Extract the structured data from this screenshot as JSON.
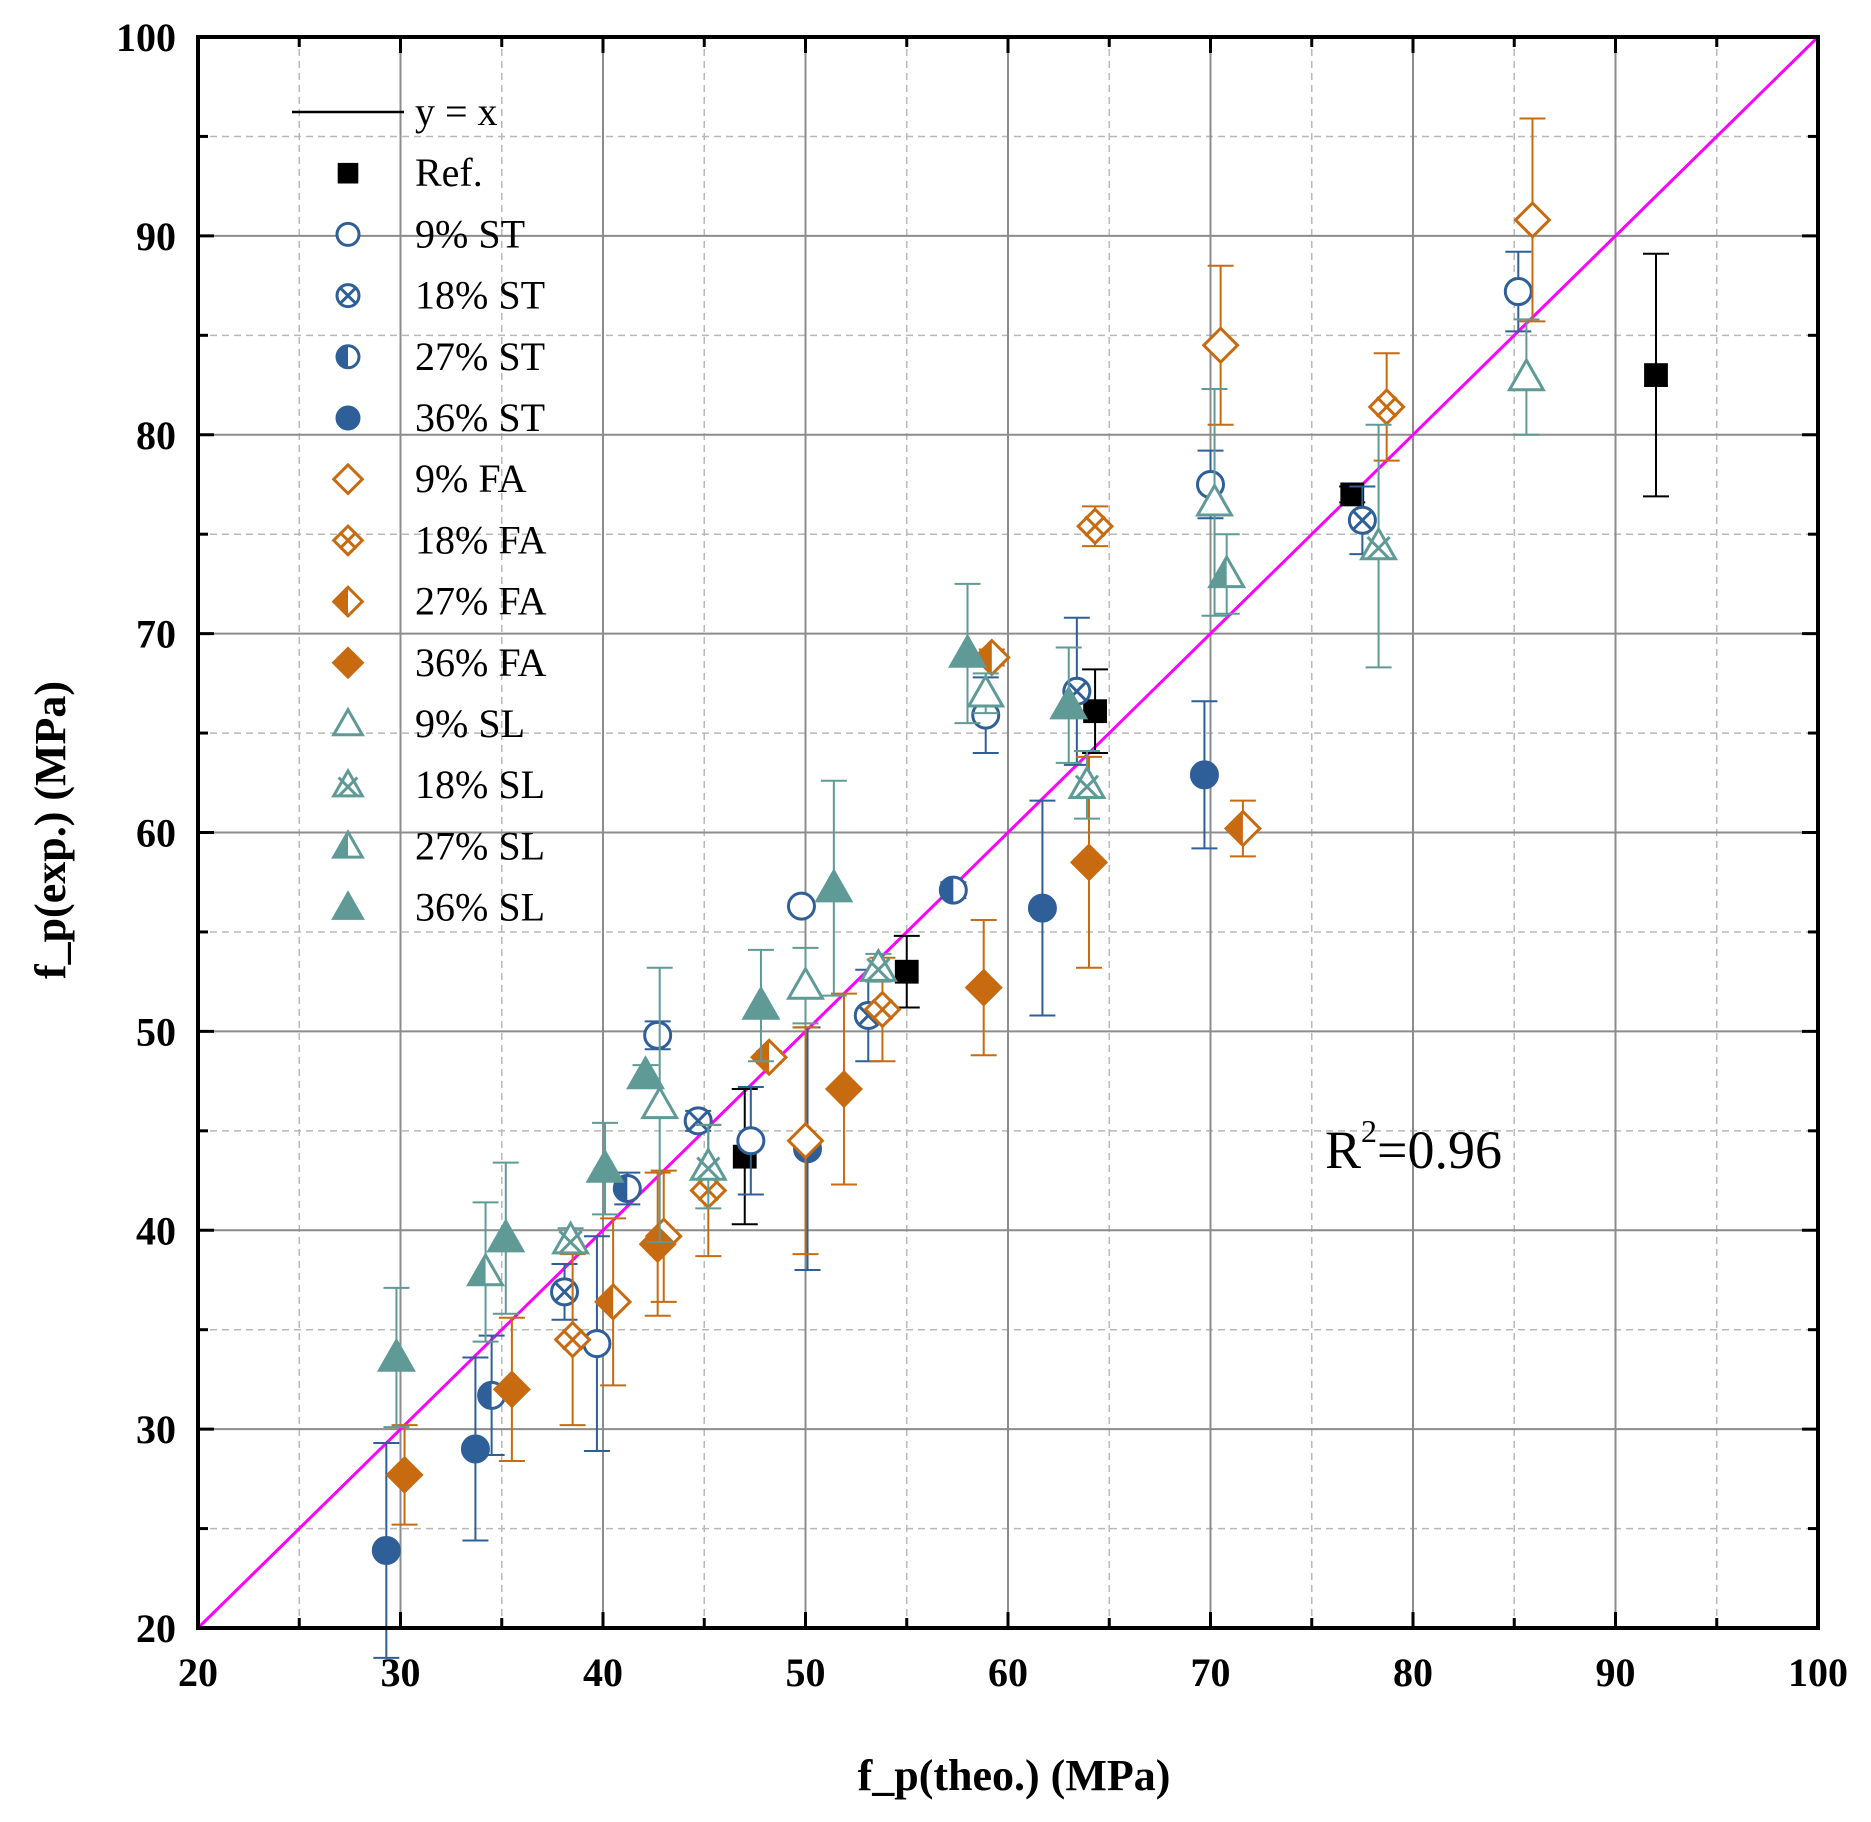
{
  "chart_data": {
    "type": "scatter",
    "xlabel": "f_p(theo.) (MPa)",
    "ylabel": "f_p(exp.) (MPa)",
    "xlim": [
      20,
      100
    ],
    "ylim": [
      20,
      100
    ],
    "xticks": [
      20,
      30,
      40,
      50,
      60,
      70,
      80,
      90,
      100
    ],
    "yticks": [
      20,
      30,
      40,
      50,
      60,
      70,
      80,
      90,
      100
    ],
    "xtick_labels": [
      "20",
      "30",
      "40",
      "50",
      "60",
      "70",
      "80",
      "90",
      "100"
    ],
    "ytick_labels": [
      "20",
      "30",
      "40",
      "50",
      "60",
      "70",
      "80",
      "90",
      "100"
    ],
    "grid": true,
    "legend_position": "top-left",
    "reference_line": {
      "label": "y = x",
      "from": [
        20,
        20
      ],
      "to": [
        100,
        100
      ],
      "color": "#ff00ff"
    },
    "annotation": {
      "base": "R",
      "sup": "2",
      "rest": "=0.96"
    },
    "series": [
      {
        "name": "Ref.",
        "marker": "square-filled",
        "color": "#000000",
        "points": [
          {
            "x": 92,
            "y": 83,
            "err": 6.1
          },
          {
            "x": 77,
            "y": 77,
            "err": 0.4
          },
          {
            "x": 64.3,
            "y": 66.1,
            "err": 2.1
          },
          {
            "x": 55,
            "y": 53,
            "err": 1.8
          },
          {
            "x": 47,
            "y": 43.7,
            "err": 3.4
          }
        ]
      },
      {
        "name": "9% ST",
        "marker": "circle-open",
        "color": "#2f5f98",
        "points": [
          {
            "x": 85.2,
            "y": 87.2,
            "err": 2.0
          },
          {
            "x": 70,
            "y": 77.5,
            "err": 1.7
          },
          {
            "x": 58.9,
            "y": 65.9,
            "err": 1.9
          },
          {
            "x": 49.8,
            "y": 56.3,
            "err": 0.3
          },
          {
            "x": 42.7,
            "y": 49.8,
            "err": 0.7
          },
          {
            "x": 47.3,
            "y": 44.5,
            "err": 2.7
          },
          {
            "x": 39.7,
            "y": 34.3,
            "err": 5.4
          }
        ]
      },
      {
        "name": "18% ST",
        "marker": "circle-cross",
        "color": "#2f5f98",
        "points": [
          {
            "x": 77.5,
            "y": 75.7,
            "err": 1.7
          },
          {
            "x": 63.4,
            "y": 67.1,
            "err": 3.7
          },
          {
            "x": 53.1,
            "y": 50.8,
            "err": 2.3
          },
          {
            "x": 44.7,
            "y": 45.5,
            "err": 0.5
          },
          {
            "x": 38.1,
            "y": 36.9,
            "err": 1.4
          }
        ]
      },
      {
        "name": "27% ST",
        "marker": "circle-half",
        "color": "#2f5f98",
        "points": [
          {
            "x": 57.3,
            "y": 57.1,
            "err": 0.4
          },
          {
            "x": 41.2,
            "y": 42.1,
            "err": 0.8
          },
          {
            "x": 34.5,
            "y": 31.7,
            "err": 3.0
          }
        ]
      },
      {
        "name": "36% ST",
        "marker": "circle-filled",
        "color": "#2f5f98",
        "points": [
          {
            "x": 69.7,
            "y": 62.9,
            "err": 3.7
          },
          {
            "x": 61.7,
            "y": 56.2,
            "err": 5.4
          },
          {
            "x": 50.1,
            "y": 44.1,
            "err": 6.1
          },
          {
            "x": 33.7,
            "y": 29.0,
            "err": 4.6
          },
          {
            "x": 29.3,
            "y": 23.9,
            "err": 5.4
          }
        ]
      },
      {
        "name": "9% FA",
        "marker": "diamond-open",
        "color": "#c86a10",
        "points": [
          {
            "x": 85.9,
            "y": 90.8,
            "err": 5.1
          },
          {
            "x": 70.5,
            "y": 84.5,
            "err": 4.0
          },
          {
            "x": 50,
            "y": 44.5,
            "err": 5.7
          },
          {
            "x": 43,
            "y": 39.7,
            "err": 3.3
          }
        ]
      },
      {
        "name": "18% FA",
        "marker": "diamond-cross",
        "color": "#c86a10",
        "points": [
          {
            "x": 78.7,
            "y": 81.4,
            "err": 2.7
          },
          {
            "x": 64.3,
            "y": 75.4,
            "err": 1.0
          },
          {
            "x": 53.8,
            "y": 51.1,
            "err": 2.6
          },
          {
            "x": 45.2,
            "y": 42.0,
            "err": 3.3
          },
          {
            "x": 38.5,
            "y": 34.5,
            "err": 4.3
          }
        ]
      },
      {
        "name": "27% FA",
        "marker": "diamond-half",
        "color": "#c86a10",
        "points": [
          {
            "x": 59.2,
            "y": 68.8,
            "err": 0.4
          },
          {
            "x": 71.6,
            "y": 60.2,
            "err": 1.4
          },
          {
            "x": 48.2,
            "y": 48.7,
            "err": 0.3
          },
          {
            "x": 40.5,
            "y": 36.4,
            "err": 4.2
          }
        ]
      },
      {
        "name": "36% FA",
        "marker": "diamond-filled",
        "color": "#c86a10",
        "points": [
          {
            "x": 64,
            "y": 58.5,
            "err": 5.3
          },
          {
            "x": 58.8,
            "y": 52.2,
            "err": 3.4
          },
          {
            "x": 51.9,
            "y": 47.1,
            "err": 4.8
          },
          {
            "x": 42.7,
            "y": 39.3,
            "err": 3.6
          },
          {
            "x": 35.5,
            "y": 32.0,
            "err": 3.6
          },
          {
            "x": 30.2,
            "y": 27.7,
            "err": 2.5
          }
        ]
      },
      {
        "name": "9% SL",
        "marker": "triangle-open",
        "color": "#5f9a96",
        "points": [
          {
            "x": 85.6,
            "y": 82.9,
            "err": 2.9
          },
          {
            "x": 70.2,
            "y": 76.6,
            "err": 5.7
          },
          {
            "x": 58.9,
            "y": 67.0,
            "err": 1.0
          },
          {
            "x": 50,
            "y": 52.3,
            "err": 1.9
          },
          {
            "x": 42.8,
            "y": 46.3,
            "err": 6.9
          }
        ]
      },
      {
        "name": "18% SL",
        "marker": "triangle-cross",
        "color": "#5f9a96",
        "points": [
          {
            "x": 78.3,
            "y": 74.4,
            "err": 6.1
          },
          {
            "x": 63.9,
            "y": 62.4,
            "err": 1.7
          },
          {
            "x": 53.6,
            "y": 53.2,
            "err": 0.7
          },
          {
            "x": 45.2,
            "y": 43.2,
            "err": 2.1
          },
          {
            "x": 38.4,
            "y": 39.5,
            "err": 0.6
          }
        ]
      },
      {
        "name": "27% SL",
        "marker": "triangle-half",
        "color": "#5f9a96",
        "points": [
          {
            "x": 70.8,
            "y": 73.0,
            "err": 2.0
          },
          {
            "x": 34.2,
            "y": 37.9,
            "err": 3.5
          }
        ]
      },
      {
        "name": "36% SL",
        "marker": "triangle-filled",
        "color": "#5f9a96",
        "points": [
          {
            "x": 58,
            "y": 69.0,
            "err": 3.5
          },
          {
            "x": 63,
            "y": 66.4,
            "err": 2.9
          },
          {
            "x": 51.4,
            "y": 57.2,
            "err": 5.4
          },
          {
            "x": 47.8,
            "y": 51.3,
            "err": 2.8
          },
          {
            "x": 42.1,
            "y": 47.8,
            "err": 0.5
          },
          {
            "x": 40.1,
            "y": 43.1,
            "err": 2.3
          },
          {
            "x": 35.2,
            "y": 39.6,
            "err": 3.8
          },
          {
            "x": 29.8,
            "y": 33.6,
            "err": 3.5
          }
        ]
      }
    ]
  }
}
